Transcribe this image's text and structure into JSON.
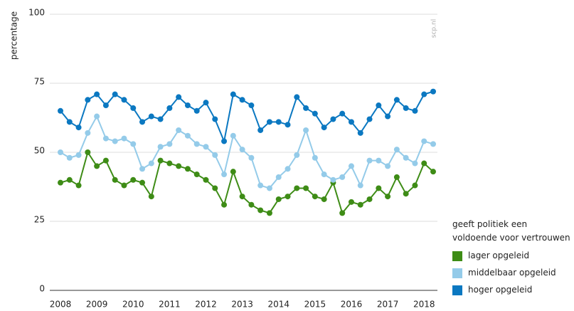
{
  "chart_data": {
    "type": "line",
    "y_label": "percentage",
    "watermark": "scp.nl",
    "legend_title": "geeft politiek een voldoende voor vertrouwen",
    "legend": "right",
    "x": [
      2008,
      2008.25,
      2008.5,
      2008.75,
      2009,
      2009.25,
      2009.5,
      2009.75,
      2010,
      2010.25,
      2010.5,
      2010.75,
      2011,
      2011.25,
      2011.5,
      2011.75,
      2012,
      2012.25,
      2012.5,
      2012.75,
      2013,
      2013.25,
      2013.5,
      2013.75,
      2014,
      2014.25,
      2014.5,
      2014.75,
      2015,
      2015.25,
      2015.5,
      2015.75,
      2016,
      2016.25,
      2016.5,
      2016.75,
      2017,
      2017.25,
      2017.5,
      2017.75,
      2018,
      2018.25
    ],
    "xlim": [
      2008,
      2018.25
    ],
    "xticks": [
      2008,
      2009,
      2010,
      2011,
      2012,
      2013,
      2014,
      2015,
      2016,
      2017,
      2018
    ],
    "ylim": [
      0,
      100
    ],
    "yticks": [
      0,
      25,
      50,
      75,
      100
    ],
    "grid": true,
    "series": [
      {
        "name": "lager opgeleid",
        "color": "#3e8c16",
        "values": [
          39,
          40,
          38,
          50,
          45,
          47,
          40,
          38,
          40,
          39,
          34,
          47,
          46,
          45,
          44,
          42,
          40,
          37,
          31,
          43,
          34,
          31,
          29,
          28,
          33,
          34,
          37,
          37,
          34,
          33,
          39,
          28,
          32,
          31,
          33,
          37,
          34,
          41,
          35,
          38,
          46,
          43
        ]
      },
      {
        "name": "middelbaar opgeleid",
        "color": "#94cbe9",
        "values": [
          50,
          48,
          49,
          57,
          63,
          55,
          54,
          55,
          53,
          44,
          46,
          52,
          53,
          58,
          56,
          53,
          52,
          49,
          42,
          56,
          51,
          48,
          38,
          37,
          41,
          44,
          49,
          58,
          48,
          42,
          40,
          41,
          45,
          38,
          47,
          47,
          45,
          51,
          48,
          46,
          54,
          53
        ]
      },
      {
        "name": "hoger opgeleid",
        "color": "#0b78c1",
        "values": [
          65,
          61,
          59,
          69,
          71,
          67,
          71,
          69,
          66,
          61,
          63,
          62,
          66,
          70,
          67,
          65,
          68,
          62,
          54,
          71,
          69,
          67,
          58,
          61,
          61,
          60,
          70,
          66,
          64,
          59,
          62,
          64,
          61,
          57,
          62,
          67,
          63,
          69,
          66,
          65,
          71,
          72
        ]
      }
    ]
  }
}
